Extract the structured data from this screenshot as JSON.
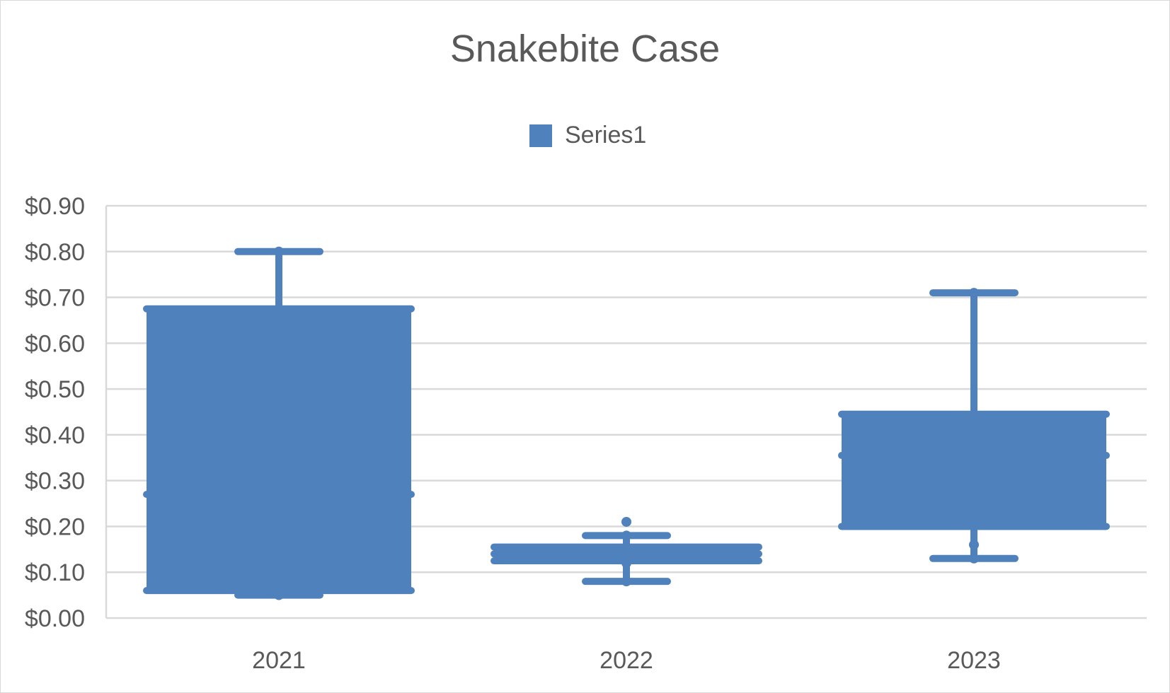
{
  "chart_data": {
    "type": "boxplot",
    "title": "Snakebite Case",
    "legend": {
      "position": "top",
      "entries": [
        "Series1"
      ]
    },
    "y_axis": {
      "min": 0,
      "max": 0.9,
      "step": 0.1,
      "tick_labels": [
        "$0.00",
        "$0.10",
        "$0.20",
        "$0.30",
        "$0.40",
        "$0.50",
        "$0.60",
        "$0.70",
        "$0.80",
        "$0.90"
      ]
    },
    "grid": true,
    "categories": [
      "2021",
      "2022",
      "2023"
    ],
    "series": [
      {
        "name": "Series1",
        "color": "#4f81bd",
        "boxes": [
          {
            "category": "2021",
            "min": 0.05,
            "q1": 0.06,
            "median": 0.27,
            "q3": 0.675,
            "max": 0.8,
            "points": [
              0.05,
              0.06,
              0.27,
              0.675,
              0.8
            ]
          },
          {
            "category": "2022",
            "min": 0.08,
            "q1": 0.125,
            "median": 0.14,
            "q3": 0.155,
            "max": 0.18,
            "points": [
              0.08,
              0.12,
              0.13,
              0.14,
              0.15,
              0.155,
              0.18,
              0.21
            ]
          },
          {
            "category": "2023",
            "min": 0.13,
            "q1": 0.2,
            "median": 0.355,
            "q3": 0.445,
            "max": 0.71,
            "points": [
              0.13,
              0.16,
              0.2,
              0.355,
              0.445,
              0.71
            ]
          }
        ]
      }
    ]
  }
}
